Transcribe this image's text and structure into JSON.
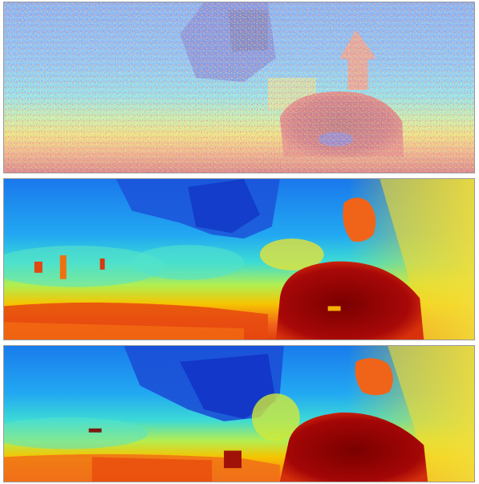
{
  "figure": {
    "panels": [
      {
        "id": "panel-1",
        "kind": "noisy-disparity-map"
      },
      {
        "id": "panel-2",
        "kind": "smoothed-disparity-map"
      },
      {
        "id": "panel-3",
        "kind": "refined-disparity-map"
      }
    ],
    "colormap": {
      "name": "jet",
      "near": "#8b0000",
      "mid": "#f2e600",
      "far": "#1a2fd6",
      "stops": [
        "#0b1fae",
        "#1b6ff0",
        "#22b8f0",
        "#36e0d0",
        "#9ff060",
        "#f2e600",
        "#ff9a10",
        "#f04010",
        "#b30000"
      ]
    }
  }
}
